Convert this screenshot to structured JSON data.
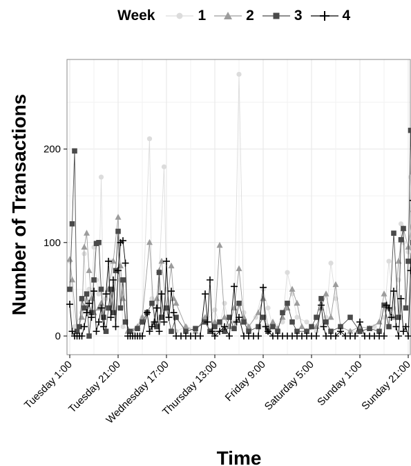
{
  "legend": {
    "title": "Week",
    "items": [
      {
        "label": "1",
        "color": "#dcdcdc",
        "marker": "circle"
      },
      {
        "label": "2",
        "color": "#9c9c9c",
        "marker": "triangle"
      },
      {
        "label": "3",
        "color": "#4a4a4a",
        "marker": "square"
      },
      {
        "label": "4",
        "color": "#000000",
        "marker": "plus"
      }
    ]
  },
  "chart_data": {
    "type": "line",
    "title": "",
    "xlabel": "Time",
    "ylabel": "Number of Transactions",
    "ylim": [
      0,
      290
    ],
    "y_ticks": [
      0,
      100,
      200
    ],
    "x_range_hours": [
      0,
      177
    ],
    "x_ticks": [
      {
        "label": "Tuesday 1:00",
        "hour": 0
      },
      {
        "label": "Tuesday 21:00",
        "hour": 20
      },
      {
        "label": "Wednesday 17:00",
        "hour": 40
      },
      {
        "label": "Thursday 13:00",
        "hour": 60
      },
      {
        "label": "Friday 9:00",
        "hour": 80
      },
      {
        "label": "Saturday 5:00",
        "hour": 100
      },
      {
        "label": "Sunday 1:00",
        "hour": 120
      },
      {
        "label": "Sunday 21:00",
        "hour": 140
      }
    ],
    "grid": true,
    "legend_position": "top",
    "series": [
      {
        "name": "1",
        "color": "#dcdcdc",
        "marker": "circle",
        "points": [
          [
            0,
            80
          ],
          [
            2,
            10
          ],
          [
            5,
            25
          ],
          [
            6,
            88
          ],
          [
            7,
            30
          ],
          [
            8,
            50
          ],
          [
            9,
            40
          ],
          [
            10,
            95
          ],
          [
            11,
            60
          ],
          [
            12,
            45
          ],
          [
            13,
            170
          ],
          [
            14,
            20
          ],
          [
            15,
            40
          ],
          [
            17,
            80
          ],
          [
            18,
            50
          ],
          [
            20,
            30
          ],
          [
            21,
            60
          ],
          [
            22,
            10
          ],
          [
            26,
            5
          ],
          [
            30,
            20
          ],
          [
            33,
            211
          ],
          [
            34,
            40
          ],
          [
            36,
            10
          ],
          [
            39,
            181
          ],
          [
            40,
            50
          ],
          [
            44,
            5
          ],
          [
            48,
            10
          ],
          [
            52,
            8
          ],
          [
            56,
            15
          ],
          [
            60,
            28
          ],
          [
            62,
            12
          ],
          [
            64,
            35
          ],
          [
            66,
            10
          ],
          [
            68,
            15
          ],
          [
            70,
            280
          ],
          [
            72,
            25
          ],
          [
            74,
            10
          ],
          [
            77,
            20
          ],
          [
            80,
            50
          ],
          [
            82,
            30
          ],
          [
            84,
            10
          ],
          [
            88,
            15
          ],
          [
            90,
            68
          ],
          [
            92,
            45
          ],
          [
            94,
            20
          ],
          [
            98,
            15
          ],
          [
            102,
            5
          ],
          [
            106,
            20
          ],
          [
            108,
            78
          ],
          [
            110,
            40
          ],
          [
            112,
            10
          ],
          [
            116,
            5
          ],
          [
            120,
            5
          ],
          [
            126,
            10
          ],
          [
            130,
            20
          ],
          [
            132,
            80
          ],
          [
            134,
            30
          ],
          [
            136,
            60
          ],
          [
            137,
            120
          ],
          [
            138,
            100
          ],
          [
            140,
            90
          ],
          [
            141,
            170
          ],
          [
            142,
            200
          ],
          [
            143,
            140
          ]
        ]
      },
      {
        "name": "2",
        "color": "#9c9c9c",
        "marker": "triangle",
        "points": [
          [
            0,
            82
          ],
          [
            1,
            60
          ],
          [
            3,
            5
          ],
          [
            5,
            20
          ],
          [
            6,
            95
          ],
          [
            7,
            110
          ],
          [
            8,
            70
          ],
          [
            9,
            40
          ],
          [
            10,
            25
          ],
          [
            12,
            30
          ],
          [
            13,
            35
          ],
          [
            14,
            20
          ],
          [
            16,
            50
          ],
          [
            18,
            80
          ],
          [
            20,
            127
          ],
          [
            21,
            75
          ],
          [
            22,
            40
          ],
          [
            24,
            5
          ],
          [
            28,
            10
          ],
          [
            30,
            20
          ],
          [
            33,
            100
          ],
          [
            35,
            15
          ],
          [
            36,
            40
          ],
          [
            37,
            70
          ],
          [
            38,
            80
          ],
          [
            40,
            30
          ],
          [
            42,
            75
          ],
          [
            43,
            40
          ],
          [
            44,
            35
          ],
          [
            48,
            10
          ],
          [
            52,
            5
          ],
          [
            56,
            20
          ],
          [
            58,
            5
          ],
          [
            60,
            15
          ],
          [
            62,
            97
          ],
          [
            64,
            20
          ],
          [
            66,
            10
          ],
          [
            68,
            30
          ],
          [
            70,
            72
          ],
          [
            72,
            20
          ],
          [
            74,
            10
          ],
          [
            78,
            25
          ],
          [
            80,
            40
          ],
          [
            82,
            10
          ],
          [
            84,
            15
          ],
          [
            86,
            8
          ],
          [
            88,
            20
          ],
          [
            90,
            30
          ],
          [
            92,
            50
          ],
          [
            94,
            35
          ],
          [
            96,
            10
          ],
          [
            98,
            5
          ],
          [
            102,
            10
          ],
          [
            104,
            30
          ],
          [
            106,
            45
          ],
          [
            108,
            20
          ],
          [
            110,
            55
          ],
          [
            112,
            10
          ],
          [
            116,
            5
          ],
          [
            120,
            10
          ],
          [
            124,
            8
          ],
          [
            128,
            15
          ],
          [
            130,
            45
          ],
          [
            132,
            30
          ],
          [
            134,
            20
          ],
          [
            136,
            80
          ],
          [
            138,
            115
          ],
          [
            140,
            95
          ],
          [
            142,
            135
          ],
          [
            143,
            155
          ]
        ]
      },
      {
        "name": "3",
        "color": "#4a4a4a",
        "marker": "square",
        "points": [
          [
            0,
            50
          ],
          [
            1,
            120
          ],
          [
            2,
            198
          ],
          [
            3,
            5
          ],
          [
            4,
            10
          ],
          [
            5,
            40
          ],
          [
            6,
            30
          ],
          [
            7,
            45
          ],
          [
            8,
            0
          ],
          [
            9,
            25
          ],
          [
            10,
            60
          ],
          [
            11,
            99
          ],
          [
            12,
            100
          ],
          [
            13,
            50
          ],
          [
            14,
            20
          ],
          [
            15,
            5
          ],
          [
            16,
            30
          ],
          [
            17,
            50
          ],
          [
            18,
            25
          ],
          [
            19,
            70
          ],
          [
            20,
            112
          ],
          [
            21,
            30
          ],
          [
            22,
            60
          ],
          [
            23,
            15
          ],
          [
            25,
            5
          ],
          [
            28,
            8
          ],
          [
            30,
            15
          ],
          [
            32,
            25
          ],
          [
            34,
            35
          ],
          [
            36,
            10
          ],
          [
            37,
            68
          ],
          [
            38,
            20
          ],
          [
            40,
            30
          ],
          [
            42,
            5
          ],
          [
            44,
            20
          ],
          [
            48,
            5
          ],
          [
            52,
            8
          ],
          [
            56,
            15
          ],
          [
            58,
            5
          ],
          [
            60,
            10
          ],
          [
            62,
            15
          ],
          [
            64,
            5
          ],
          [
            66,
            20
          ],
          [
            68,
            8
          ],
          [
            70,
            35
          ],
          [
            72,
            15
          ],
          [
            74,
            5
          ],
          [
            78,
            10
          ],
          [
            80,
            20
          ],
          [
            82,
            5
          ],
          [
            84,
            10
          ],
          [
            86,
            5
          ],
          [
            88,
            25
          ],
          [
            90,
            35
          ],
          [
            92,
            15
          ],
          [
            94,
            5
          ],
          [
            98,
            5
          ],
          [
            100,
            10
          ],
          [
            102,
            20
          ],
          [
            104,
            40
          ],
          [
            106,
            15
          ],
          [
            108,
            5
          ],
          [
            112,
            10
          ],
          [
            116,
            20
          ],
          [
            120,
            5
          ],
          [
            124,
            8
          ],
          [
            128,
            5
          ],
          [
            130,
            33
          ],
          [
            132,
            10
          ],
          [
            134,
            110
          ],
          [
            136,
            20
          ],
          [
            137,
            103
          ],
          [
            138,
            115
          ],
          [
            139,
            30
          ],
          [
            140,
            80
          ],
          [
            141,
            220
          ],
          [
            142,
            100
          ],
          [
            143,
            60
          ]
        ]
      },
      {
        "name": "4",
        "color": "#000000",
        "marker": "plus",
        "points": [
          [
            0,
            34
          ],
          [
            1,
            5
          ],
          [
            2,
            0
          ],
          [
            3,
            0
          ],
          [
            4,
            0
          ],
          [
            5,
            0
          ],
          [
            6,
            10
          ],
          [
            7,
            25
          ],
          [
            8,
            35
          ],
          [
            9,
            20
          ],
          [
            10,
            48
          ],
          [
            11,
            5
          ],
          [
            12,
            15
          ],
          [
            13,
            30
          ],
          [
            14,
            10
          ],
          [
            15,
            45
          ],
          [
            16,
            80
          ],
          [
            17,
            20
          ],
          [
            18,
            60
          ],
          [
            19,
            10
          ],
          [
            20,
            70
          ],
          [
            21,
            100
          ],
          [
            22,
            102
          ],
          [
            23,
            78
          ],
          [
            24,
            0
          ],
          [
            25,
            0
          ],
          [
            26,
            0
          ],
          [
            27,
            0
          ],
          [
            28,
            0
          ],
          [
            29,
            0
          ],
          [
            30,
            0
          ],
          [
            32,
            25
          ],
          [
            33,
            5
          ],
          [
            34,
            10
          ],
          [
            35,
            15
          ],
          [
            36,
            30
          ],
          [
            37,
            5
          ],
          [
            38,
            45
          ],
          [
            39,
            15
          ],
          [
            40,
            80
          ],
          [
            41,
            20
          ],
          [
            42,
            48
          ],
          [
            43,
            25
          ],
          [
            44,
            0
          ],
          [
            46,
            0
          ],
          [
            48,
            0
          ],
          [
            50,
            0
          ],
          [
            52,
            0
          ],
          [
            54,
            0
          ],
          [
            56,
            45
          ],
          [
            57,
            15
          ],
          [
            58,
            60
          ],
          [
            59,
            5
          ],
          [
            60,
            0
          ],
          [
            62,
            5
          ],
          [
            64,
            10
          ],
          [
            66,
            0
          ],
          [
            68,
            53
          ],
          [
            69,
            15
          ],
          [
            70,
            20
          ],
          [
            72,
            0
          ],
          [
            74,
            0
          ],
          [
            76,
            0
          ],
          [
            78,
            0
          ],
          [
            80,
            52
          ],
          [
            81,
            10
          ],
          [
            82,
            5
          ],
          [
            84,
            0
          ],
          [
            86,
            0
          ],
          [
            88,
            0
          ],
          [
            90,
            0
          ],
          [
            92,
            0
          ],
          [
            94,
            0
          ],
          [
            96,
            0
          ],
          [
            98,
            0
          ],
          [
            100,
            0
          ],
          [
            102,
            0
          ],
          [
            104,
            33
          ],
          [
            105,
            10
          ],
          [
            106,
            0
          ],
          [
            108,
            0
          ],
          [
            110,
            0
          ],
          [
            112,
            5
          ],
          [
            114,
            0
          ],
          [
            116,
            0
          ],
          [
            118,
            0
          ],
          [
            120,
            15
          ],
          [
            122,
            0
          ],
          [
            124,
            0
          ],
          [
            126,
            0
          ],
          [
            128,
            0
          ],
          [
            130,
            0
          ],
          [
            131,
            33
          ],
          [
            132,
            30
          ],
          [
            133,
            20
          ],
          [
            134,
            48
          ],
          [
            135,
            10
          ],
          [
            136,
            0
          ],
          [
            137,
            40
          ],
          [
            138,
            5
          ],
          [
            139,
            10
          ],
          [
            140,
            0
          ],
          [
            141,
            70
          ],
          [
            142,
            145
          ],
          [
            143,
            65
          ]
        ]
      }
    ]
  }
}
